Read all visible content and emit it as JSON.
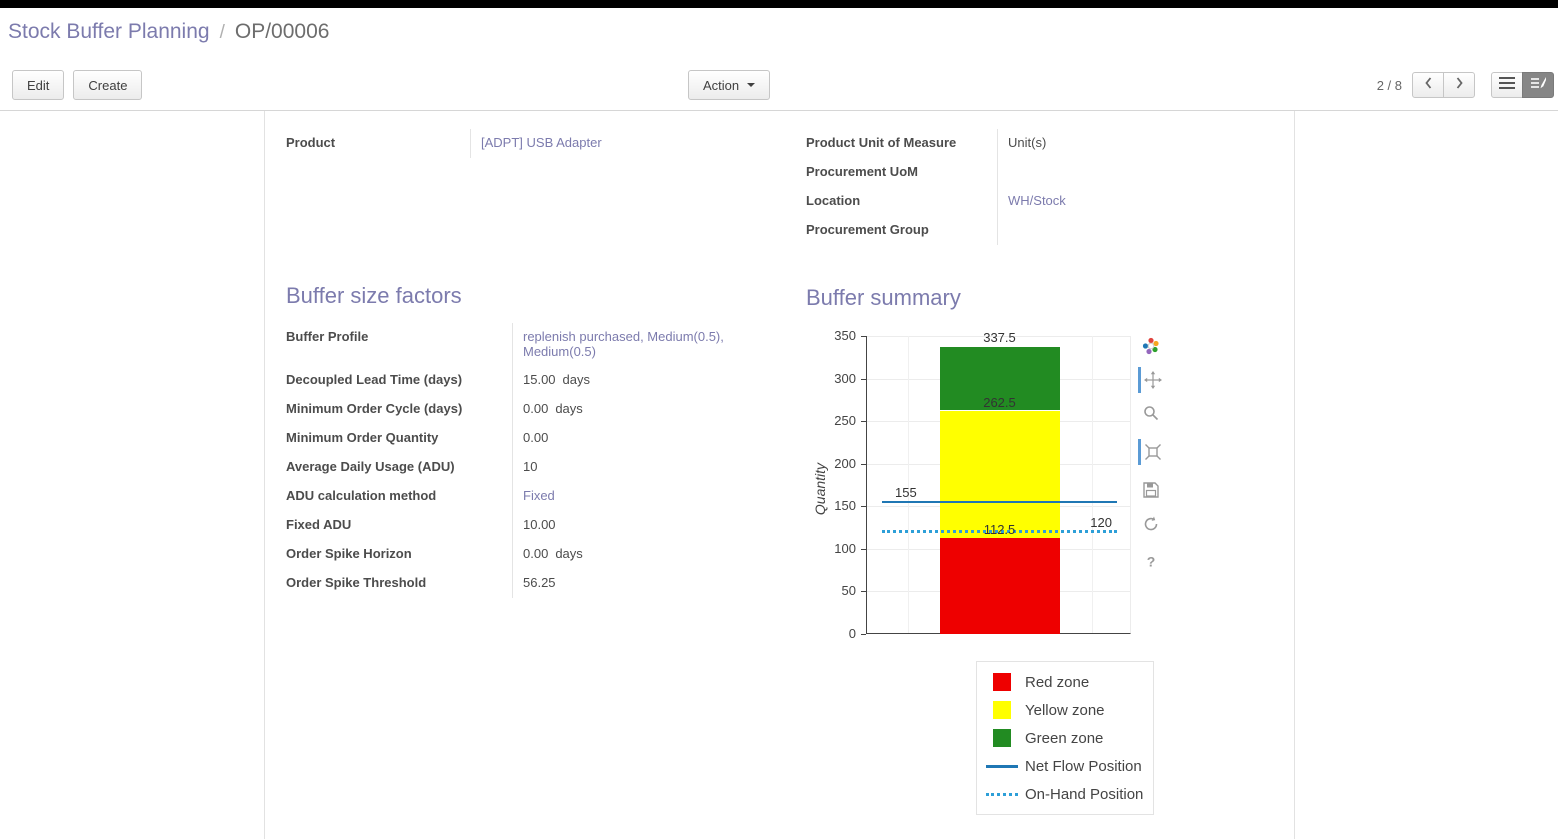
{
  "breadcrumb": {
    "parent": "Stock Buffer Planning",
    "separator": "/",
    "current": "OP/00006"
  },
  "control_panel": {
    "edit": "Edit",
    "create": "Create",
    "action": "Action",
    "pager": "2 / 8"
  },
  "form": {
    "product": {
      "label": "Product",
      "value": "[ADPT] USB Adapter"
    },
    "right_rows": [
      {
        "label": "Product Unit of Measure",
        "value": "Unit(s)"
      },
      {
        "label": "Procurement UoM",
        "value": ""
      },
      {
        "label": "Location",
        "value": "WH/Stock"
      },
      {
        "label": "Procurement Group",
        "value": ""
      }
    ],
    "buffer_factors": {
      "title": "Buffer size factors",
      "rows": [
        {
          "label": "Buffer Profile",
          "value": "replenish purchased, Medium(0.5), Medium(0.5)",
          "suffix": ""
        },
        {
          "label": "Decoupled Lead Time (days)",
          "value": "15.00",
          "suffix": "days"
        },
        {
          "label": "Minimum Order Cycle (days)",
          "value": "0.00",
          "suffix": "days"
        },
        {
          "label": "Minimum Order Quantity",
          "value": "0.00",
          "suffix": ""
        },
        {
          "label": "Average Daily Usage (ADU)",
          "value": "10",
          "suffix": ""
        },
        {
          "label": "ADU calculation method",
          "value": "Fixed",
          "suffix": ""
        },
        {
          "label": "Fixed ADU",
          "value": "10.00",
          "suffix": ""
        },
        {
          "label": "Order Spike Horizon",
          "value": "0.00",
          "suffix": "days"
        },
        {
          "label": "Order Spike Threshold",
          "value": "56.25",
          "suffix": ""
        }
      ]
    },
    "buffer_summary_title": "Buffer summary"
  },
  "chart_data": {
    "type": "bar",
    "title": "",
    "xlabel": "",
    "ylabel": "Quantity",
    "ylim": [
      0,
      350
    ],
    "yticks": [
      0,
      50,
      100,
      150,
      200,
      250,
      300,
      350
    ],
    "grid": true,
    "legend_position": "bottom-right",
    "stacked_zones": [
      {
        "name": "Red zone",
        "from": 0,
        "to": 112.5,
        "color": "#ee0000"
      },
      {
        "name": "Yellow zone",
        "from": 112.5,
        "to": 262.5,
        "color": "#ffff00"
      },
      {
        "name": "Green zone",
        "from": 262.5,
        "to": 337.5,
        "color": "#228b22"
      }
    ],
    "reference_lines": [
      {
        "name": "Net Flow Position",
        "value": 155,
        "style": "solid",
        "width": 2,
        "color": "#1f77b4"
      },
      {
        "name": "On-Hand Position",
        "value": 120,
        "style": "dotted",
        "width": 3,
        "color": "#2d9fd8"
      }
    ],
    "annotations": [
      {
        "text": "337.5",
        "y": 337.5,
        "anchor": "center",
        "dy": -17
      },
      {
        "text": "262.5",
        "y": 262.5,
        "anchor": "center",
        "dy": -16
      },
      {
        "text": "112.5",
        "y": 112.5,
        "anchor": "center",
        "dy": -16
      },
      {
        "text": "155",
        "y": 155,
        "anchor": "left",
        "dy": -17
      },
      {
        "text": "120",
        "y": 120,
        "anchor": "right",
        "dy": -17
      }
    ],
    "legend": [
      {
        "label": "Red zone",
        "swatch": "square",
        "color": "#ee0000"
      },
      {
        "label": "Yellow zone",
        "swatch": "square",
        "color": "#ffff00"
      },
      {
        "label": "Green zone",
        "swatch": "square",
        "color": "#228b22"
      },
      {
        "label": "Net Flow Position",
        "swatch": "line",
        "color": "#1f77b4"
      },
      {
        "label": "On-Hand Position",
        "swatch": "dots",
        "color": "#2d9fd8"
      }
    ]
  },
  "icons": {
    "modebar": [
      "plotly-logo-icon",
      "pan-icon",
      "zoom-icon",
      "zoom-scale-icon",
      "save-icon",
      "reset-axes-icon",
      "help-icon"
    ],
    "pager": [
      "chevron-left-icon",
      "chevron-right-icon"
    ],
    "view_switcher": [
      "list-view-icon",
      "form-view-icon"
    ]
  },
  "colors": {
    "accent": "#7c7bad",
    "link": "#7c7bad"
  }
}
